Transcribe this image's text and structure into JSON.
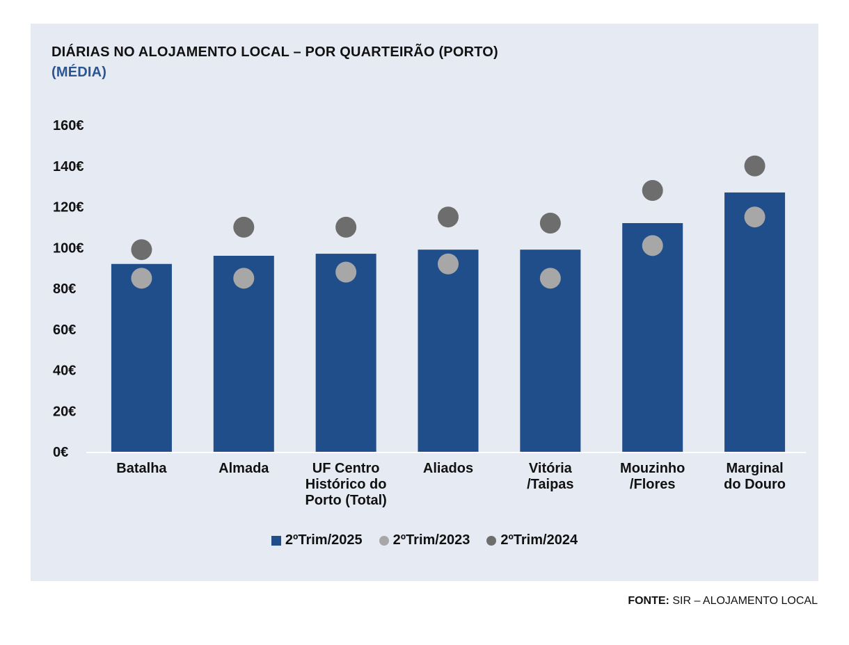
{
  "header": {
    "top_fragment": "",
    "title": "DIÁRIAS NO ALOJAMENTO LOCAL – POR QUARTEIRÃO (PORTO)",
    "subtitle": "(MÉDIA)"
  },
  "colors": {
    "bar": "#1f4e8a",
    "dot_2023": "#a7a7a7",
    "dot_2024": "#6d6d6d",
    "background": "#e6eaf3"
  },
  "chart_data": {
    "type": "bar",
    "title": "DIÁRIAS NO ALOJAMENTO LOCAL – POR QUARTEIRÃO (PORTO)",
    "subtitle": "(MÉDIA)",
    "ylabel": "",
    "xlabel": "",
    "ylim": [
      0,
      160
    ],
    "yticks": [
      0,
      20,
      40,
      60,
      80,
      100,
      120,
      140,
      160
    ],
    "ytick_labels": [
      "0€",
      "20€",
      "40€",
      "60€",
      "80€",
      "100€",
      "120€",
      "140€",
      "160€"
    ],
    "categories": [
      [
        "Batalha"
      ],
      [
        "Almada"
      ],
      [
        "UF Centro",
        "Histórico do",
        "Porto (Total)"
      ],
      [
        "Aliados"
      ],
      [
        "Vitória",
        "/Taipas"
      ],
      [
        "Mouzinho",
        "/Flores"
      ],
      [
        "Marginal",
        "do Douro"
      ]
    ],
    "series": [
      {
        "name": "2ºTrim/2025",
        "kind": "bar",
        "values": [
          92,
          96,
          97,
          99,
          99,
          112,
          127
        ]
      },
      {
        "name": "2ºTrim/2023",
        "kind": "dot",
        "values": [
          85,
          85,
          88,
          92,
          85,
          101,
          115
        ]
      },
      {
        "name": "2ºTrim/2024",
        "kind": "dot",
        "values": [
          99,
          110,
          110,
          115,
          112,
          128,
          140
        ]
      }
    ],
    "legend": [
      "2ºTrim/2025",
      "2ºTrim/2023",
      "2ºTrim/2024"
    ],
    "legend_position": "bottom"
  },
  "source": {
    "label": "FONTE:",
    "text": "SIR – ALOJAMENTO LOCAL"
  }
}
